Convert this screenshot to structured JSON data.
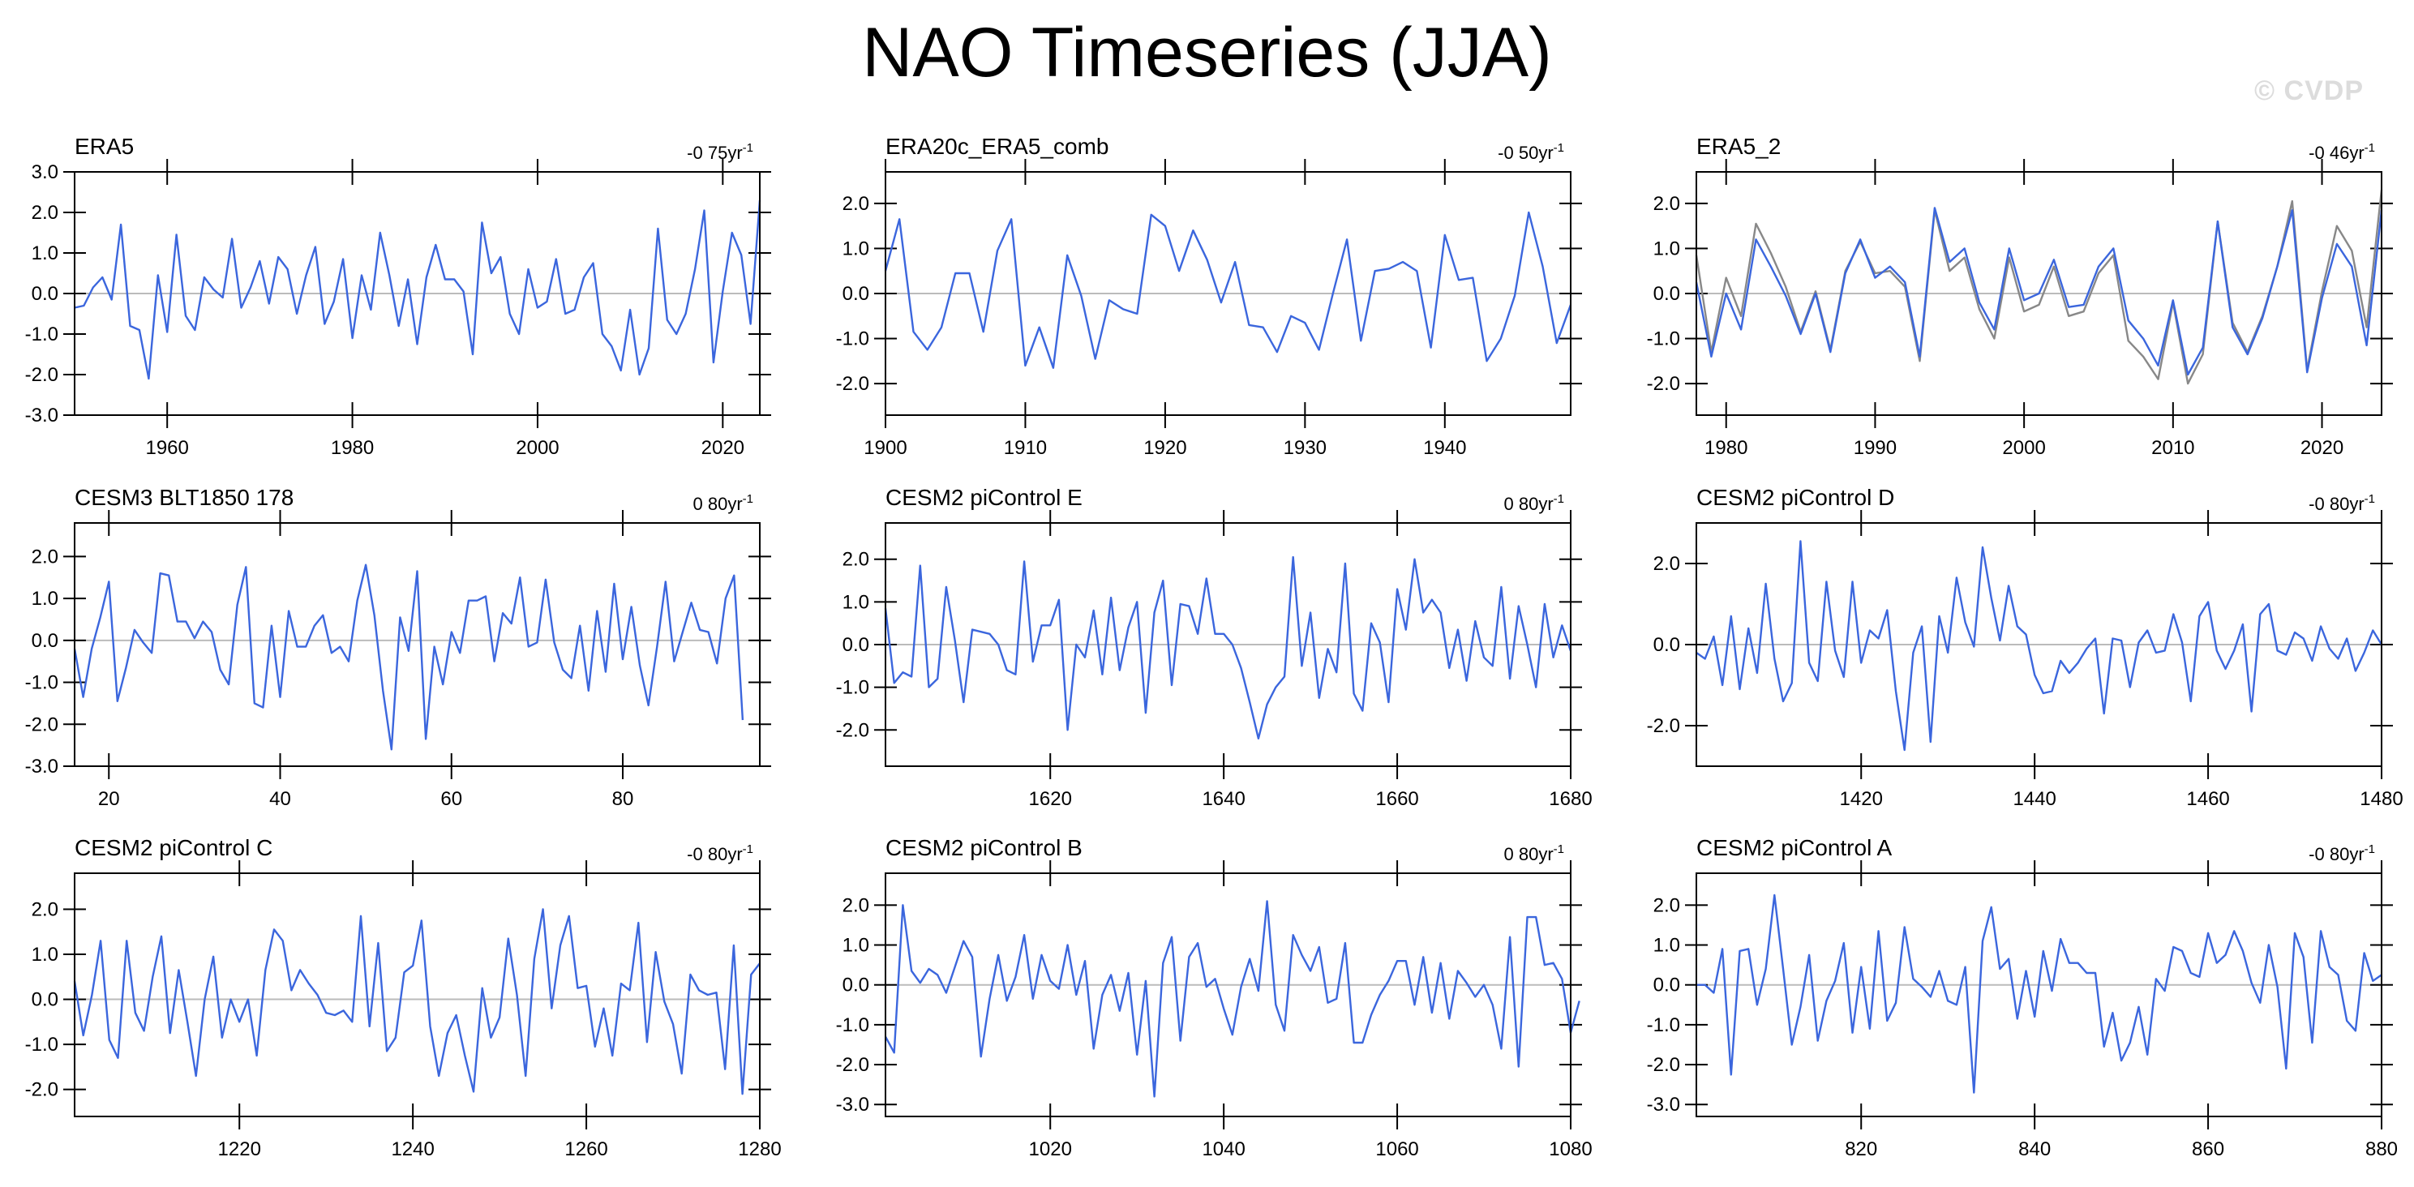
{
  "title": "NAO Timeseries (JJA)",
  "watermark": "© CVDP",
  "colors": {
    "series": "#3b66dd",
    "obs": "#888888",
    "zero_line": "#bbbbbb",
    "frame": "#000000"
  },
  "chart_data": [
    {
      "type": "line",
      "title": "ERA5",
      "trend_text": "-0 75yr",
      "trend_unit_exp": "-1",
      "xlim": [
        1950,
        2024
      ],
      "xticks": [
        1960,
        1980,
        2000,
        2020
      ],
      "ylim": [
        -3.0,
        3.0
      ],
      "yticks": [
        "3.0",
        "2.0",
        "1.0",
        "0.0",
        "-1.0",
        "-2.0",
        "-3.0"
      ],
      "x_start": 1950,
      "x_step": 1,
      "zero_line": true,
      "series": [
        {
          "values": [
            -0.35,
            -0.3,
            0.15,
            0.4,
            -0.15,
            1.7,
            -0.8,
            -0.9,
            -2.1,
            0.45,
            -0.95,
            1.45,
            -0.55,
            -0.9,
            0.4,
            0.1,
            -0.1,
            1.35,
            -0.35,
            0.15,
            0.8,
            -0.25,
            0.9,
            0.6,
            -0.5,
            0.45,
            1.15,
            -0.75,
            -0.2,
            0.85,
            -1.1,
            0.45,
            -0.4,
            1.5,
            0.45,
            -0.8,
            0.35,
            -1.25,
            0.4,
            1.2,
            0.35,
            0.35,
            0.05,
            -1.5,
            1.75,
            0.5,
            0.9,
            -0.5,
            -1.0,
            0.6,
            -0.35,
            -0.2,
            0.85,
            -0.5,
            -0.4,
            0.4,
            0.75,
            -1.0,
            -1.3,
            -1.9,
            -0.4,
            -2.0,
            -1.35,
            1.6,
            -0.65,
            -1.0,
            -0.5,
            0.6,
            2.05,
            -1.7,
            0.05,
            1.5,
            0.95,
            -0.75,
            2.3
          ]
        }
      ]
    },
    {
      "type": "line",
      "title": "ERA20c_ERA5_comb",
      "trend_text": "-0 50yr",
      "trend_unit_exp": "-1",
      "xlim": [
        1900,
        1949
      ],
      "xticks": [
        1900,
        1910,
        1920,
        1930,
        1940
      ],
      "ylim": [
        -2.7,
        2.7
      ],
      "yticks": [
        "2.0",
        "1.0",
        "0.0",
        "-1.0",
        "-2.0"
      ],
      "x_start": 1900,
      "x_step": 1,
      "zero_line": true,
      "series": [
        {
          "values": [
            0.5,
            1.65,
            -0.85,
            -1.25,
            -0.75,
            0.45,
            0.45,
            -0.85,
            0.95,
            1.65,
            -1.6,
            -0.75,
            -1.65,
            0.85,
            -0.05,
            -1.45,
            -0.15,
            -0.35,
            -0.45,
            1.75,
            1.5,
            0.5,
            1.4,
            0.75,
            -0.2,
            0.7,
            -0.7,
            -0.75,
            -1.3,
            -0.5,
            -0.65,
            -1.25,
            0.0,
            1.2,
            -1.05,
            0.5,
            0.55,
            0.7,
            0.5,
            -1.2,
            1.3,
            0.3,
            0.35,
            -1.5,
            -1.0,
            -0.05,
            1.8,
            0.6,
            -1.1,
            -0.25
          ]
        }
      ]
    },
    {
      "type": "line",
      "title": "ERA5_2",
      "trend_text": "-0 46yr",
      "trend_unit_exp": "-1",
      "xlim": [
        1978,
        2024
      ],
      "xticks": [
        1980,
        1990,
        2000,
        2010,
        2020
      ],
      "ylim": [
        -2.7,
        2.7
      ],
      "yticks": [
        "2.0",
        "1.0",
        "0.0",
        "-1.0",
        "-2.0"
      ],
      "x_start": 1978,
      "x_step": 1,
      "zero_line": true,
      "series": [
        {
          "values": [
            0.85,
            -1.3,
            0.35,
            -0.5,
            1.55,
            0.9,
            0.15,
            -0.85,
            0.05,
            -1.25,
            0.5,
            1.15,
            0.45,
            0.5,
            0.15,
            -1.5,
            1.85,
            0.5,
            0.8,
            -0.35,
            -1.0,
            0.8,
            -0.4,
            -0.25,
            0.6,
            -0.5,
            -0.4,
            0.45,
            0.85,
            -1.05,
            -1.4,
            -1.9,
            -0.2,
            -2.0,
            -1.35,
            1.6,
            -0.65,
            -1.3,
            -0.5,
            0.6,
            2.05,
            -1.7,
            0.05,
            1.5,
            0.95,
            -0.75,
            2.3
          ]
        },
        {
          "values": [
            0.25,
            -1.4,
            0.0,
            -0.8,
            1.2,
            0.6,
            -0.05,
            -0.9,
            0.0,
            -1.3,
            0.45,
            1.2,
            0.35,
            0.6,
            0.25,
            -1.4,
            1.9,
            0.7,
            1.0,
            -0.2,
            -0.8,
            1.0,
            -0.15,
            0.0,
            0.75,
            -0.3,
            -0.25,
            0.6,
            1.0,
            -0.6,
            -1.0,
            -1.6,
            -0.15,
            -1.8,
            -1.2,
            1.6,
            -0.75,
            -1.35,
            -0.55,
            0.6,
            1.85,
            -1.75,
            -0.1,
            1.1,
            0.6,
            -1.15,
            1.85
          ]
        }
      ]
    },
    {
      "type": "line",
      "title": "CESM3 BLT1850 178",
      "trend_text": "0 80yr",
      "trend_unit_exp": "-1",
      "xlim": [
        16,
        96
      ],
      "xticks": [
        20,
        40,
        60,
        80
      ],
      "ylim": [
        -3.0,
        2.8
      ],
      "yticks": [
        "2.0",
        "1.0",
        "0.0",
        "-1.0",
        "-2.0",
        "-3.0"
      ],
      "x_start": 16,
      "x_step": 1,
      "zero_line": true,
      "series": [
        {
          "values": [
            -0.2,
            -1.35,
            -0.2,
            0.55,
            1.4,
            -1.45,
            -0.65,
            0.25,
            -0.05,
            -0.3,
            1.6,
            1.55,
            0.45,
            0.45,
            0.05,
            0.45,
            0.2,
            -0.7,
            -1.05,
            0.85,
            1.75,
            -1.5,
            -1.6,
            0.35,
            -1.35,
            0.7,
            -0.15,
            -0.15,
            0.35,
            0.6,
            -0.3,
            -0.15,
            -0.5,
            0.95,
            1.8,
            0.6,
            -1.2,
            -2.6,
            0.55,
            -0.25,
            1.65,
            -2.35,
            -0.15,
            -1.05,
            0.2,
            -0.3,
            0.95,
            0.95,
            1.05,
            -0.5,
            0.65,
            0.4,
            1.5,
            -0.15,
            -0.05,
            1.45,
            -0.05,
            -0.7,
            -0.9,
            0.35,
            -1.2,
            0.7,
            -0.75,
            1.35,
            -0.45,
            0.8,
            -0.6,
            -1.55,
            -0.15,
            1.4,
            -0.5,
            0.2,
            0.9,
            0.25,
            0.2,
            -0.55,
            1.0,
            1.55,
            -1.9
          ]
        }
      ]
    },
    {
      "type": "line",
      "title": "CESM2 piControl E",
      "trend_text": "0 80yr",
      "trend_unit_exp": "-1",
      "xlim": [
        1601,
        1680
      ],
      "xticks": [
        1620,
        1640,
        1660,
        1680
      ],
      "ylim": [
        -2.85,
        2.85
      ],
      "yticks": [
        "2.0",
        "1.0",
        "0.0",
        "-1.0",
        "-2.0"
      ],
      "x_start": 1601,
      "x_step": 1,
      "zero_line": true,
      "series": [
        {
          "values": [
            0.85,
            -0.9,
            -0.65,
            -0.75,
            1.85,
            -1.0,
            -0.8,
            1.35,
            0.1,
            -1.35,
            0.35,
            0.3,
            0.25,
            0.0,
            -0.6,
            -0.7,
            1.95,
            -0.4,
            0.45,
            0.45,
            1.05,
            -2.0,
            0.0,
            -0.3,
            0.8,
            -0.7,
            1.1,
            -0.6,
            0.4,
            1.0,
            -1.6,
            0.75,
            1.5,
            -0.95,
            0.95,
            0.9,
            0.25,
            1.55,
            0.25,
            0.25,
            0.0,
            -0.55,
            -1.35,
            -2.2,
            -1.4,
            -1.0,
            -0.75,
            2.05,
            -0.5,
            0.75,
            -1.25,
            -0.1,
            -0.65,
            1.9,
            -1.15,
            -1.55,
            0.5,
            0.05,
            -1.35,
            1.3,
            0.35,
            2.0,
            0.75,
            1.05,
            0.75,
            -0.55,
            0.35,
            -0.85,
            0.55,
            -0.3,
            -0.5,
            1.35,
            -0.8,
            0.9,
            0.0,
            -1.0,
            0.95,
            -0.3,
            0.45,
            -0.15
          ]
        }
      ]
    },
    {
      "type": "line",
      "title": "CESM2 piControl D",
      "trend_text": "-0 80yr",
      "trend_unit_exp": "-1",
      "xlim": [
        1401,
        1480
      ],
      "xticks": [
        1420,
        1440,
        1460,
        1480
      ],
      "ylim": [
        -3.0,
        3.0
      ],
      "yticks": [
        "2.0",
        "0.0",
        "-2.0"
      ],
      "x_start": 1401,
      "x_step": 1,
      "zero_line": true,
      "series": [
        {
          "values": [
            -0.2,
            -0.35,
            0.2,
            -1.0,
            0.7,
            -1.1,
            0.4,
            -0.7,
            1.5,
            -0.35,
            -1.4,
            -0.95,
            2.55,
            -0.45,
            -0.9,
            1.55,
            -0.15,
            -0.8,
            1.55,
            -0.45,
            0.35,
            0.15,
            0.85,
            -1.15,
            -2.6,
            -0.2,
            0.45,
            -2.4,
            0.7,
            -0.2,
            1.65,
            0.55,
            -0.05,
            2.4,
            1.15,
            0.1,
            1.45,
            0.45,
            0.25,
            -0.75,
            -1.2,
            -1.15,
            -0.4,
            -0.7,
            -0.45,
            -0.1,
            0.15,
            -1.7,
            0.15,
            0.1,
            -1.05,
            0.05,
            0.35,
            -0.2,
            -0.15,
            0.75,
            0.05,
            -1.4,
            0.7,
            1.05,
            -0.15,
            -0.6,
            -0.15,
            0.5,
            -1.65,
            0.75,
            1.0,
            -0.15,
            -0.25,
            0.3,
            0.15,
            -0.4,
            0.45,
            -0.1,
            -0.35,
            0.15,
            -0.65,
            -0.2,
            0.35,
            0.0
          ]
        }
      ]
    },
    {
      "type": "line",
      "title": "CESM2 piControl C",
      "trend_text": "-0 80yr",
      "trend_unit_exp": "-1",
      "xlim": [
        1201,
        1280
      ],
      "xticks": [
        1220,
        1240,
        1260,
        1280
      ],
      "ylim": [
        -2.6,
        2.8
      ],
      "yticks": [
        "2.0",
        "1.0",
        "0.0",
        "-1.0",
        "-2.0"
      ],
      "x_start": 1201,
      "x_step": 1,
      "zero_line": true,
      "series": [
        {
          "values": [
            0.4,
            -0.8,
            0.1,
            1.3,
            -0.9,
            -1.3,
            1.3,
            -0.3,
            -0.7,
            0.5,
            1.4,
            -0.75,
            0.65,
            -0.5,
            -1.7,
            0.0,
            0.95,
            -0.85,
            0.0,
            -0.5,
            0.0,
            -1.25,
            0.65,
            1.55,
            1.3,
            0.2,
            0.65,
            0.35,
            0.1,
            -0.3,
            -0.35,
            -0.25,
            -0.5,
            1.85,
            -0.6,
            1.25,
            -1.15,
            -0.85,
            0.6,
            0.75,
            1.75,
            -0.6,
            -1.7,
            -0.75,
            -0.35,
            -1.25,
            -2.05,
            0.25,
            -0.85,
            -0.4,
            1.35,
            0.1,
            -1.7,
            0.9,
            2.0,
            -0.2,
            1.2,
            1.85,
            0.25,
            0.3,
            -1.05,
            -0.2,
            -1.25,
            0.35,
            0.2,
            1.7,
            -0.95,
            1.05,
            -0.05,
            -0.55,
            -1.65,
            0.55,
            0.2,
            0.1,
            0.15,
            -1.55,
            1.2,
            -2.1,
            0.55,
            0.8
          ]
        }
      ]
    },
    {
      "type": "line",
      "title": "CESM2 piControl B",
      "trend_text": "0 80yr",
      "trend_unit_exp": "-1",
      "xlim": [
        1001,
        1080
      ],
      "xticks": [
        1020,
        1040,
        1060,
        1080
      ],
      "ylim": [
        -3.3,
        2.8
      ],
      "yticks": [
        "2.0",
        "1.0",
        "0.0",
        "-1.0",
        "-2.0",
        "-3.0"
      ],
      "x_start": 1001,
      "x_step": 1,
      "zero_line": true,
      "series": [
        {
          "values": [
            -1.3,
            -1.7,
            2.0,
            0.35,
            0.05,
            0.4,
            0.25,
            -0.2,
            0.45,
            1.1,
            0.7,
            -1.8,
            -0.35,
            0.75,
            -0.4,
            0.2,
            1.25,
            -0.35,
            0.75,
            0.1,
            -0.1,
            1.0,
            -0.25,
            0.6,
            -1.6,
            -0.25,
            0.25,
            -0.65,
            0.3,
            -1.75,
            0.1,
            -2.8,
            0.55,
            1.2,
            -1.4,
            0.7,
            1.05,
            -0.05,
            0.15,
            -0.6,
            -1.25,
            -0.05,
            0.65,
            -0.15,
            2.1,
            -0.5,
            -1.15,
            1.25,
            0.75,
            0.35,
            0.95,
            -0.45,
            -0.35,
            1.05,
            -1.45,
            -1.45,
            -0.75,
            -0.25,
            0.1,
            0.6,
            0.6,
            -0.5,
            0.7,
            -0.7,
            0.55,
            -0.85,
            0.35,
            0.05,
            -0.3,
            0.0,
            -0.5,
            -1.6,
            1.2,
            -2.05,
            1.7,
            1.7,
            0.5,
            0.55,
            0.15,
            -1.2,
            -0.4
          ]
        }
      ]
    },
    {
      "type": "line",
      "title": "CESM2 piControl A",
      "trend_text": "-0 80yr",
      "trend_unit_exp": "-1",
      "xlim": [
        801,
        880
      ],
      "xticks": [
        820,
        840,
        860,
        880
      ],
      "ylim": [
        -3.3,
        2.8
      ],
      "yticks": [
        "2.0",
        "1.0",
        "0.0",
        "-1.0",
        "-2.0",
        "-3.0"
      ],
      "x_start": 801,
      "x_step": 1,
      "zero_line": true,
      "series": [
        {
          "values": [
            0.0,
            0.0,
            -0.2,
            0.9,
            -2.25,
            0.85,
            0.9,
            -0.5,
            0.4,
            2.25,
            0.4,
            -1.5,
            -0.55,
            0.75,
            -1.4,
            -0.4,
            0.1,
            1.05,
            -1.2,
            0.45,
            -1.1,
            1.35,
            -0.9,
            -0.45,
            1.45,
            0.15,
            -0.05,
            -0.3,
            0.35,
            -0.4,
            -0.5,
            0.45,
            -2.7,
            1.1,
            1.95,
            0.4,
            0.65,
            -0.85,
            0.35,
            -0.8,
            0.85,
            -0.15,
            1.15,
            0.55,
            0.55,
            0.3,
            0.3,
            -1.55,
            -0.7,
            -1.9,
            -1.45,
            -0.55,
            -1.75,
            0.15,
            -0.15,
            0.95,
            0.85,
            0.3,
            0.2,
            1.3,
            0.55,
            0.75,
            1.35,
            0.85,
            0.05,
            -0.45,
            1.0,
            -0.05,
            -2.1,
            1.3,
            0.7,
            -1.45,
            1.35,
            0.45,
            0.25,
            -0.9,
            -1.15,
            0.8,
            0.1,
            0.25
          ]
        }
      ]
    }
  ]
}
